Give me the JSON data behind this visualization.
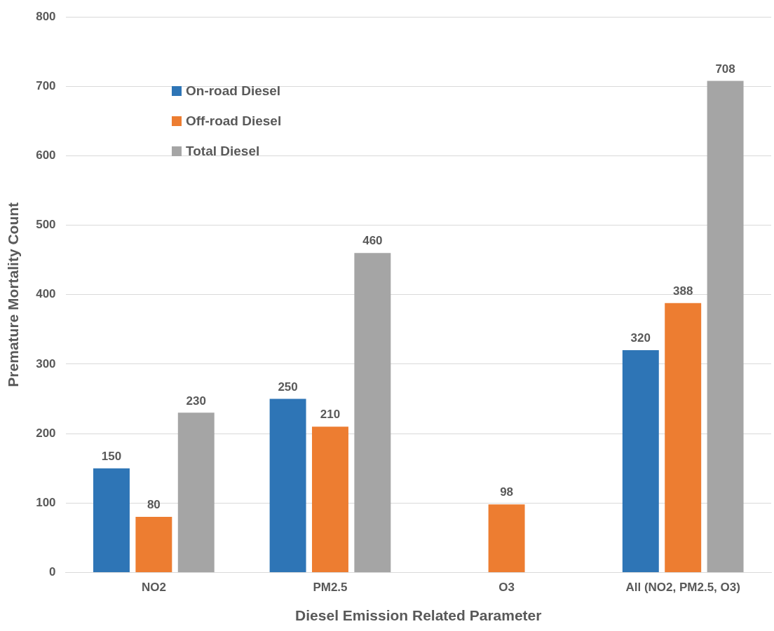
{
  "chart_data": {
    "type": "bar",
    "xlabel": "Diesel Emission Related Parameter",
    "ylabel": "Premature Mortality Count",
    "categories": [
      "NO2",
      "PM2.5",
      "O3",
      "All (NO2, PM2.5, O3)"
    ],
    "series": [
      {
        "name": "On-road Diesel",
        "color": "#2e75b6",
        "values": [
          150,
          250,
          null,
          320
        ]
      },
      {
        "name": "Off-road Diesel",
        "color": "#ed7d31",
        "values": [
          80,
          210,
          98,
          388
        ]
      },
      {
        "name": "Total Diesel",
        "color": "#a5a5a5",
        "values": [
          230,
          460,
          null,
          708
        ]
      }
    ],
    "ylim": [
      0,
      800
    ],
    "yticks": [
      0,
      100,
      200,
      300,
      400,
      500,
      600,
      700,
      800
    ],
    "grid": "y",
    "legend": "top left",
    "data_labels": true
  }
}
